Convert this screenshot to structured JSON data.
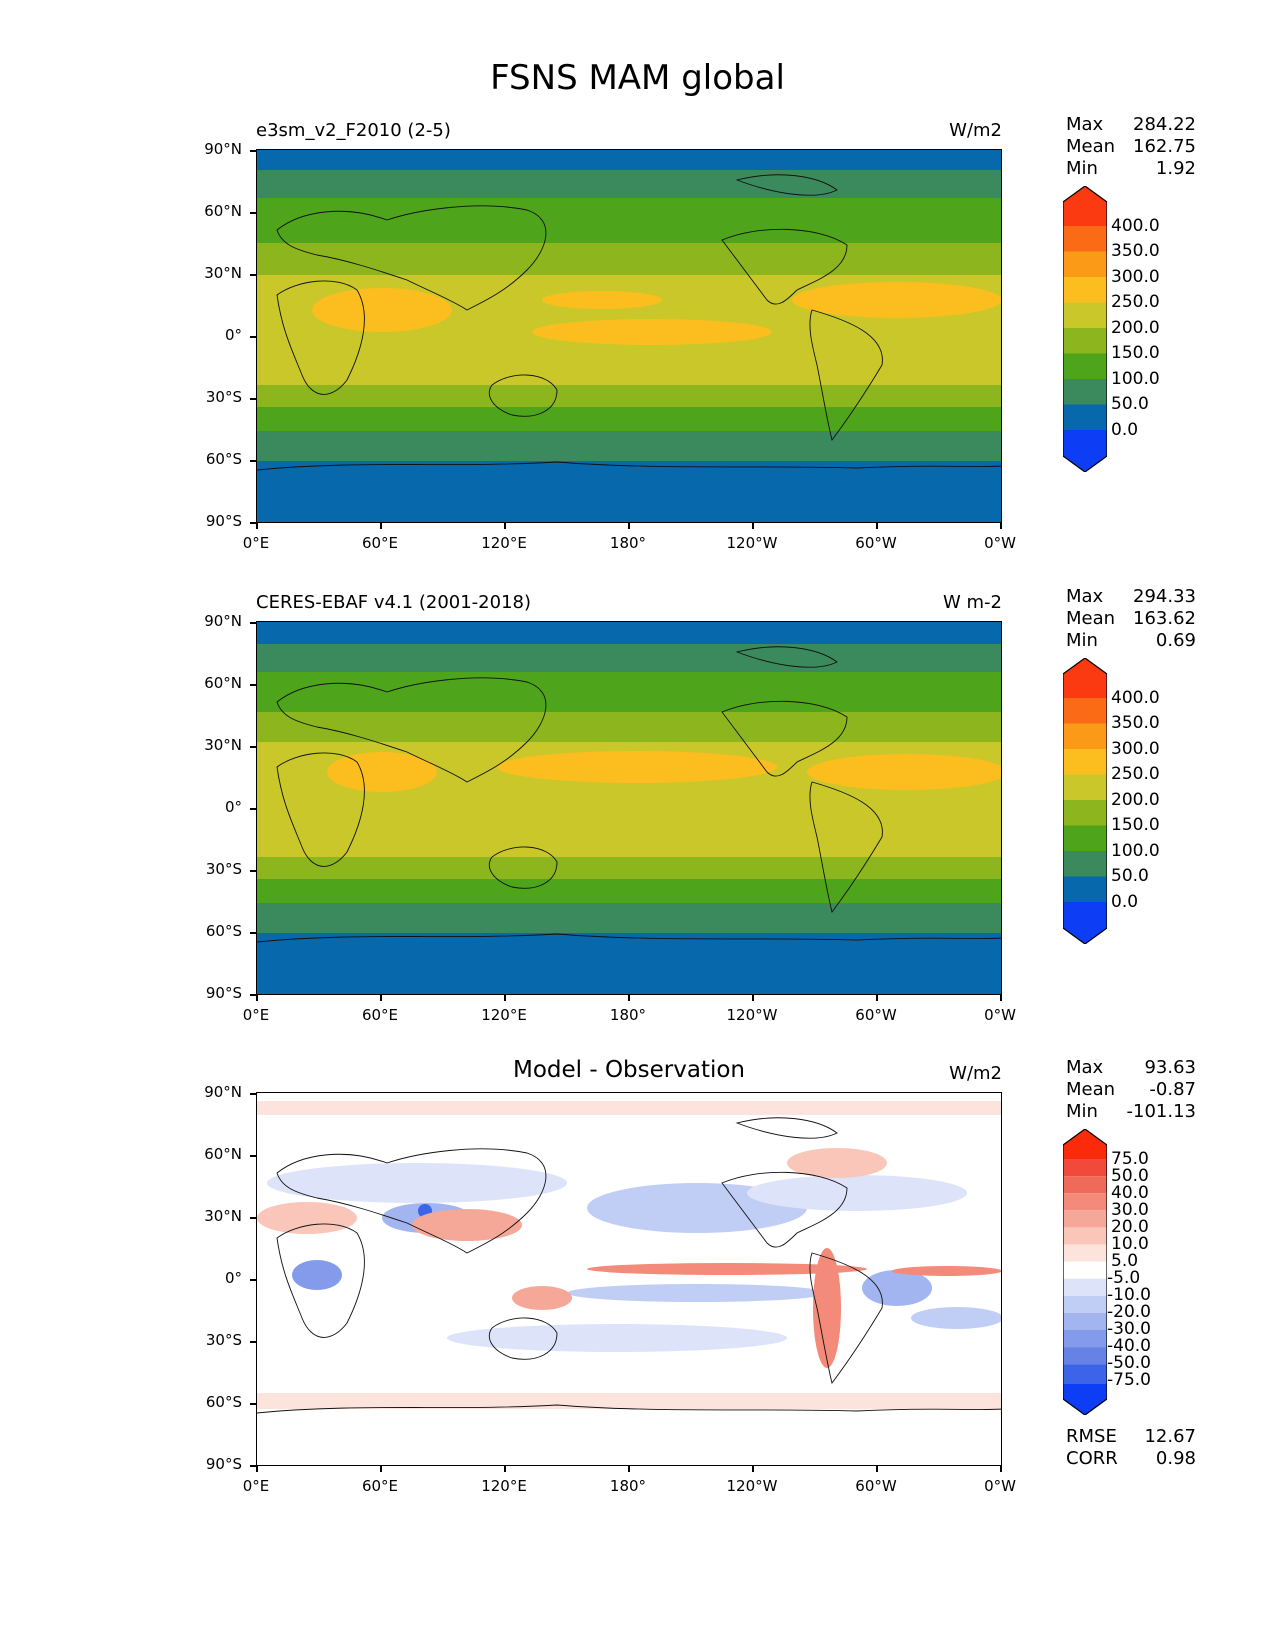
{
  "title": "FSNS MAM global",
  "axes": {
    "y_ticks": [
      "90°N",
      "60°N",
      "30°N",
      "0°",
      "30°S",
      "60°S",
      "90°S"
    ],
    "x_ticks": [
      "0°E",
      "60°E",
      "120°E",
      "180°",
      "120°W",
      "60°W",
      "0°W"
    ]
  },
  "panels": [
    {
      "title": "e3sm_v2_F2010 (2-5)",
      "units": "W/m2",
      "stats": {
        "max_label": "Max",
        "max": "284.22",
        "mean_label": "Mean",
        "mean": "162.75",
        "min_label": "Min",
        "min": "1.92"
      }
    },
    {
      "title": "CERES-EBAF v4.1 (2001-2018)",
      "units": "W m-2",
      "stats": {
        "max_label": "Max",
        "max": "294.33",
        "mean_label": "Mean",
        "mean": "163.62",
        "min_label": "Min",
        "min": "0.69"
      }
    },
    {
      "title": "Model - Observation",
      "units": "W/m2",
      "stats": {
        "max_label": "Max",
        "max": "93.63",
        "mean_label": "Mean",
        "mean": "-0.87",
        "min_label": "Min",
        "min": "-101.13"
      },
      "metrics": {
        "rmse_label": "RMSE",
        "rmse": "12.67",
        "corr_label": "CORR",
        "corr": "0.98"
      }
    }
  ],
  "colorbars": {
    "field": {
      "labels": [
        "400.0",
        "350.0",
        "300.0",
        "250.0",
        "200.0",
        "150.0",
        "100.0",
        "50.0",
        "0.0"
      ],
      "colors_top_to_bottom": [
        "#fb3a12",
        "#fb6a14",
        "#fb9a17",
        "#fbbe1e",
        "#c9c72a",
        "#8db51d",
        "#4ea41a",
        "#3b8a5e",
        "#0868ac",
        "#0d3ef5"
      ]
    },
    "diff": {
      "labels": [
        "75.0",
        "50.0",
        "40.0",
        "30.0",
        "20.0",
        "10.0",
        "5.0",
        "-5.0",
        "-10.0",
        "-20.0",
        "-30.0",
        "-40.0",
        "-50.0",
        "-75.0"
      ],
      "colors_top_to_bottom": [
        "#fb2a0a",
        "#f14a3a",
        "#f06a5a",
        "#f38a7a",
        "#f6a898",
        "#f9c6b9",
        "#fce4dc",
        "#ffffff",
        "#dde4fa",
        "#c0cdf5",
        "#a2b5f0",
        "#839bea",
        "#6582e4",
        "#3b64e8",
        "#0d3ef5"
      ]
    }
  },
  "chart_data": [
    {
      "type": "heatmap",
      "title": "e3sm_v2_F2010 (2-5)",
      "variable": "FSNS",
      "units": "W/m2",
      "x_ticks": [
        "0°E",
        "60°E",
        "120°E",
        "180°",
        "120°W",
        "60°W",
        "0°W"
      ],
      "y_ticks": [
        "90°N",
        "60°N",
        "30°N",
        "0°",
        "30°S",
        "60°S",
        "90°S"
      ],
      "levels": [
        0,
        50,
        100,
        150,
        200,
        250,
        300,
        350,
        400
      ],
      "max": 284.22,
      "mean": 162.75,
      "min": 1.92
    },
    {
      "type": "heatmap",
      "title": "CERES-EBAF v4.1 (2001-2018)",
      "variable": "FSNS",
      "units": "W m-2",
      "x_ticks": [
        "0°E",
        "60°E",
        "120°E",
        "180°",
        "120°W",
        "60°W",
        "0°W"
      ],
      "y_ticks": [
        "90°N",
        "60°N",
        "30°N",
        "0°",
        "30°S",
        "60°S",
        "90°S"
      ],
      "levels": [
        0,
        50,
        100,
        150,
        200,
        250,
        300,
        350,
        400
      ],
      "max": 294.33,
      "mean": 163.62,
      "min": 0.69
    },
    {
      "type": "heatmap",
      "title": "Model - Observation",
      "variable": "FSNS difference",
      "units": "W/m2",
      "x_ticks": [
        "0°E",
        "60°E",
        "120°E",
        "180°",
        "120°W",
        "60°W",
        "0°W"
      ],
      "y_ticks": [
        "90°N",
        "60°N",
        "30°N",
        "0°",
        "30°S",
        "60°S",
        "90°S"
      ],
      "levels": [
        -75,
        -50,
        -40,
        -30,
        -20,
        -10,
        -5,
        5,
        10,
        20,
        30,
        40,
        50,
        75
      ],
      "max": 93.63,
      "mean": -0.87,
      "min": -101.13,
      "rmse": 12.67,
      "corr": 0.98
    }
  ]
}
